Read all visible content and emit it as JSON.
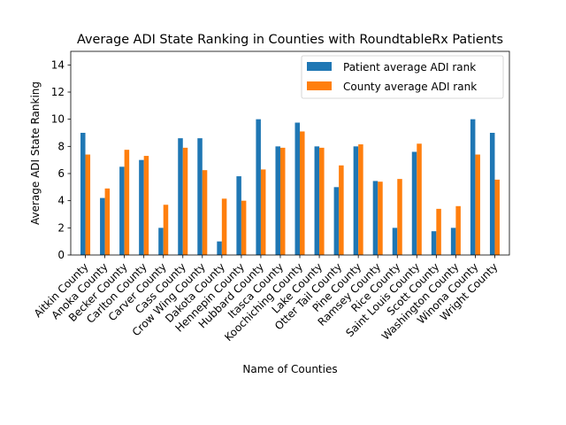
{
  "chart_data": {
    "type": "bar",
    "title": "Average ADI State Ranking in Counties with RoundtableRx Patients",
    "xlabel": "Name of Counties",
    "ylabel": "Average ADI State Ranking",
    "ylim": [
      0,
      15
    ],
    "yticks": [
      0,
      2,
      4,
      6,
      8,
      10,
      12,
      14
    ],
    "legend_position": "top-right",
    "categories": [
      "Aitkin County",
      "Anoka County",
      "Becker County",
      "Carlton County",
      "Carver County",
      "Cass County",
      "Crow Wing County",
      "Dakota County",
      "Hennepin County",
      "Hubbard County",
      "Itasca County",
      "Koochiching County",
      "Lake County",
      "Otter Tail County",
      "Pine County",
      "Ramsey County",
      "Rice County",
      "Saint Louis County",
      "Scott County",
      "Washington County",
      "Winona County",
      "Wright County"
    ],
    "series": [
      {
        "name": "Patient average ADI rank",
        "color": "#1f77b4",
        "values": [
          9.0,
          4.2,
          6.5,
          7.0,
          2.0,
          8.6,
          8.6,
          1.0,
          5.8,
          10.0,
          8.0,
          9.75,
          8.0,
          5.0,
          8.0,
          5.45,
          2.0,
          7.6,
          1.75,
          2.0,
          10.0,
          9.0
        ]
      },
      {
        "name": "County average ADI rank",
        "color": "#ff7f0e",
        "values": [
          7.4,
          4.9,
          7.75,
          7.3,
          3.7,
          7.9,
          6.25,
          4.15,
          4.0,
          6.3,
          7.9,
          9.1,
          7.9,
          6.6,
          8.15,
          5.4,
          5.6,
          8.2,
          3.4,
          3.6,
          7.4,
          5.55
        ]
      }
    ]
  }
}
